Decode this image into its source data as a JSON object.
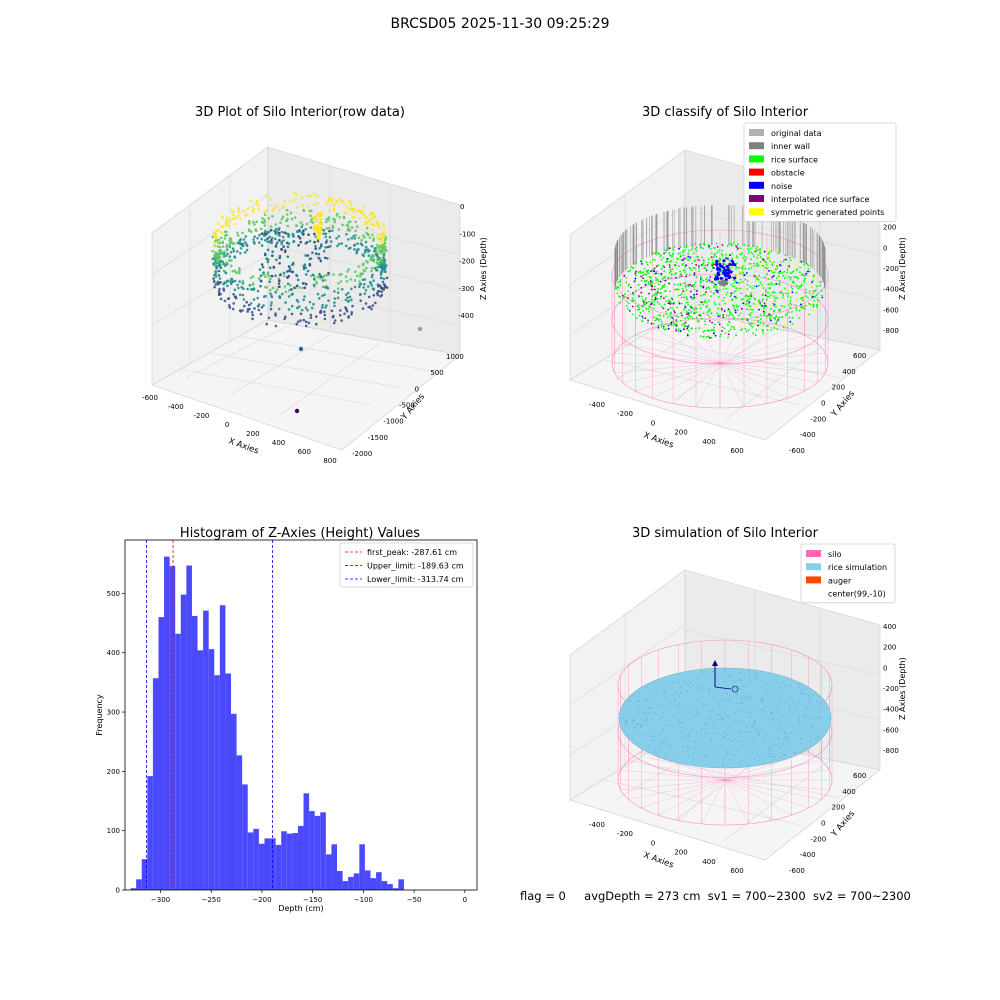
{
  "figure_title": "BRCSD05 2025-11-30 09:25:29",
  "footer": {
    "flag": "flag = 0",
    "avg": "avgDepth = 273 cm",
    "sv1": "sv1 = 700~2300",
    "sv2": "sv2 = 700~2300"
  },
  "colors": {
    "histogram_bar": "#4a4afc",
    "peak_line": "#ff0000",
    "limit_line": "#0000ff",
    "silo": "#ff69b4",
    "rice_simulation": "#87ceeb",
    "auger": "#ff4500",
    "rice_surface": "#00ff00",
    "noise": "#0000ff",
    "inner_wall": "#808080",
    "original_data": "#b0b0b0",
    "obstacle": "#ff0000",
    "interpolated_rice_surface": "#800080",
    "symmetric_generated_points": "#ffff00"
  },
  "chart_data": [
    {
      "type": "scatter",
      "projection": "3d",
      "title": "3D Plot of Silo Interior(row data)",
      "xlabel": "X Axies",
      "ylabel": "Y Axies",
      "zlabel": "Z Axies (Depth)",
      "x_ticks": [
        "-600",
        "-400",
        "-200",
        "0",
        "200",
        "400",
        "600",
        "800"
      ],
      "y_ticks": [
        "-2000",
        "-1500",
        "-1000",
        "-500",
        "0",
        "500",
        "1000"
      ],
      "z_ticks": [
        "-400",
        "-300",
        "-200",
        "-100",
        "0"
      ],
      "colormap": "viridis",
      "outliers": [
        {
          "x": 430,
          "y": -1200,
          "z": -400,
          "color": "#440154"
        },
        {
          "x": 70,
          "y": -1000,
          "z": -150,
          "color": "#31688e"
        },
        {
          "x": 780,
          "y": 500,
          "z": -300,
          "color": "#9e9e9e"
        }
      ]
    },
    {
      "type": "scatter",
      "projection": "3d",
      "title": "3D classify of Silo Interior",
      "xlabel": "X Axies",
      "ylabel": "Y Axies",
      "zlabel": "Z Axies (Depth)",
      "x_ticks": [
        "-400",
        "-200",
        "0",
        "200",
        "400",
        "600"
      ],
      "y_ticks": [
        "-600",
        "-400",
        "-200",
        "0",
        "200",
        "400",
        "600"
      ],
      "z_ticks": [
        "-800",
        "-600",
        "-400",
        "-200",
        "0",
        "200",
        "400"
      ],
      "legend_position": "top-right",
      "legend": [
        {
          "label": "original data",
          "color": "#b0b0b0"
        },
        {
          "label": "inner wall",
          "color": "#808080"
        },
        {
          "label": "rice surface",
          "color": "#00ff00"
        },
        {
          "label": "obstacle",
          "color": "#ff0000"
        },
        {
          "label": "noise",
          "color": "#0000ff"
        },
        {
          "label": "interpolated rice surface",
          "color": "#800080"
        },
        {
          "label": "symmetric generated points",
          "color": "#ffff00"
        }
      ]
    },
    {
      "type": "bar",
      "subtype": "histogram",
      "title": "Histogram of Z-Axies (Height) Values",
      "xlabel": "Depth (cm)",
      "ylabel": "Frequency",
      "xlim": [
        -335,
        12
      ],
      "ylim": [
        0,
        590
      ],
      "x_ticks": [
        -300,
        -250,
        -200,
        -150,
        -100,
        -50,
        0
      ],
      "y_ticks": [
        0,
        100,
        200,
        300,
        400,
        500
      ],
      "bin_width": 5.5,
      "bins": [
        {
          "x": -329.5,
          "count": 3
        },
        {
          "x": -324.0,
          "count": 18
        },
        {
          "x": -318.5,
          "count": 52
        },
        {
          "x": -313.0,
          "count": 192
        },
        {
          "x": -307.5,
          "count": 357
        },
        {
          "x": -302.0,
          "count": 460
        },
        {
          "x": -296.5,
          "count": 562
        },
        {
          "x": -291.0,
          "count": 546
        },
        {
          "x": -285.5,
          "count": 432
        },
        {
          "x": -280.0,
          "count": 498
        },
        {
          "x": -274.5,
          "count": 547
        },
        {
          "x": -269.0,
          "count": 462
        },
        {
          "x": -263.5,
          "count": 404
        },
        {
          "x": -258.0,
          "count": 471
        },
        {
          "x": -252.5,
          "count": 406
        },
        {
          "x": -247.0,
          "count": 362
        },
        {
          "x": -241.5,
          "count": 480
        },
        {
          "x": -236.0,
          "count": 365
        },
        {
          "x": -230.5,
          "count": 297
        },
        {
          "x": -225.0,
          "count": 227
        },
        {
          "x": -219.5,
          "count": 178
        },
        {
          "x": -214.0,
          "count": 97
        },
        {
          "x": -208.5,
          "count": 103
        },
        {
          "x": -203.0,
          "count": 78
        },
        {
          "x": -197.5,
          "count": 87
        },
        {
          "x": -192.0,
          "count": 87
        },
        {
          "x": -186.5,
          "count": 76
        },
        {
          "x": -181.0,
          "count": 99
        },
        {
          "x": -175.5,
          "count": 95
        },
        {
          "x": -170.0,
          "count": 96
        },
        {
          "x": -164.5,
          "count": 108
        },
        {
          "x": -159.0,
          "count": 163
        },
        {
          "x": -153.5,
          "count": 133
        },
        {
          "x": -148.0,
          "count": 125
        },
        {
          "x": -142.5,
          "count": 131
        },
        {
          "x": -137.0,
          "count": 60
        },
        {
          "x": -131.5,
          "count": 77
        },
        {
          "x": -126.0,
          "count": 32
        },
        {
          "x": -120.5,
          "count": 15
        },
        {
          "x": -115.0,
          "count": 22
        },
        {
          "x": -109.5,
          "count": 28
        },
        {
          "x": -104.0,
          "count": 77
        },
        {
          "x": -98.5,
          "count": 33
        },
        {
          "x": -93.0,
          "count": 20
        },
        {
          "x": -87.5,
          "count": 30
        },
        {
          "x": -82.0,
          "count": 15
        },
        {
          "x": -76.5,
          "count": 10
        },
        {
          "x": -71.0,
          "count": 3
        },
        {
          "x": -65.5,
          "count": 18
        }
      ],
      "lines": [
        {
          "label": "first_peak: -287.61 cm",
          "x": -287.61,
          "color": "#ff0000"
        },
        {
          "label": "Upper_limit: -189.63 cm",
          "x": -189.63,
          "color": "#0000ff"
        },
        {
          "label": "Lower_limit: -313.74 cm",
          "x": -313.74,
          "color": "#0000ff"
        }
      ],
      "legend_position": "top-right"
    },
    {
      "type": "scatter",
      "projection": "3d",
      "title": "3D simulation of Silo Interior",
      "xlabel": "X Axies",
      "ylabel": "Y Axies",
      "zlabel": "Z Axies (Depth)",
      "x_ticks": [
        "-400",
        "-200",
        "0",
        "200",
        "400",
        "600"
      ],
      "y_ticks": [
        "-600",
        "-400",
        "-200",
        "0",
        "200",
        "400",
        "600"
      ],
      "z_ticks": [
        "-800",
        "-600",
        "-400",
        "-200",
        "0",
        "200",
        "400"
      ],
      "legend_position": "top-right",
      "legend": [
        {
          "label": "silo",
          "color": "#ff69b4"
        },
        {
          "label": "rice simulation",
          "color": "#87ceeb"
        },
        {
          "label": "auger",
          "color": "#ff4500"
        },
        {
          "label": "center(99,-10)",
          "color": ""
        }
      ]
    }
  ]
}
